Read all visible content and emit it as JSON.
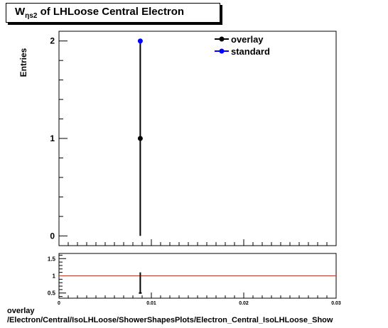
{
  "title": {
    "main": "W",
    "sub": "ηs2",
    "rest": " of LHLoose Central  Electron"
  },
  "caption": {
    "line1": "overlay",
    "line2": "/Electron/Central/IsoLHLoose/ShowerShapesPlots/Electron_Central_IsoLHLoose_Show"
  },
  "colors": {
    "overlay": "#000000",
    "standard": "#0000ff",
    "ratio_line": "#c0392b"
  },
  "chart_data": [
    {
      "type": "scatter",
      "ylabel": "Entries",
      "xlim": [
        0,
        0.03
      ],
      "ylim": [
        -0.1,
        2.1
      ],
      "yticks": [
        0,
        1,
        2
      ],
      "legend": "top-right",
      "series": [
        {
          "name": "overlay",
          "x": [
            0.0088
          ],
          "y": [
            1
          ],
          "yerr": [
            1
          ]
        },
        {
          "name": "standard",
          "x": [
            0.0088
          ],
          "y": [
            2
          ],
          "yerr": [
            0
          ]
        }
      ]
    },
    {
      "type": "scatter",
      "xlim": [
        0,
        0.03
      ],
      "ylim": [
        0.35,
        1.65
      ],
      "yticks": [
        "0.5",
        "1",
        "1.5"
      ],
      "xticks": [
        "0",
        "0.01",
        "0.02",
        "0.03"
      ],
      "reference_line": 1,
      "series": [
        {
          "x": [
            0.0088
          ],
          "y": [
            0.5
          ],
          "yerr_up": [
            0.6
          ],
          "yerr_down": [
            0
          ]
        }
      ]
    }
  ]
}
